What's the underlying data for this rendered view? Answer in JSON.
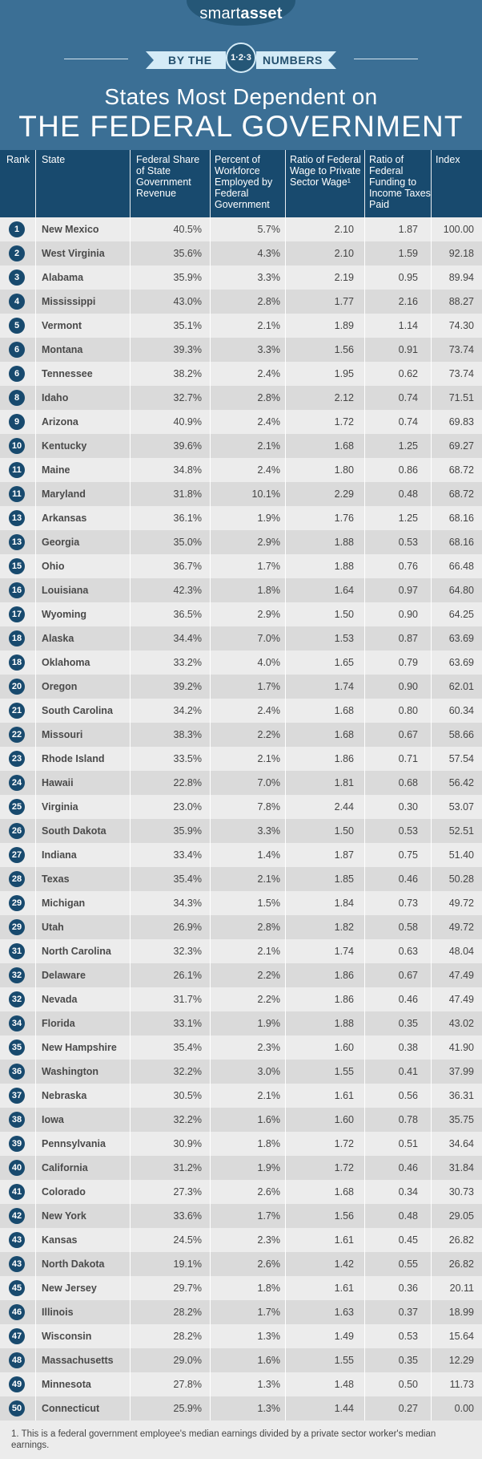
{
  "brand": {
    "light": "smart",
    "bold": "asset"
  },
  "banner": {
    "left": "BY THE",
    "badge": "1·2·3",
    "right": "NUMBERS"
  },
  "title": {
    "line1": "States Most Dependent on",
    "line2": "THE FEDERAL GOVERNMENT"
  },
  "colors": {
    "header_bg": "#3b6f95",
    "table_head": "#184a6e",
    "ribbon": "#d4ebf7",
    "row_light": "#ececec",
    "row_dark": "#dadada"
  },
  "chart_data": {
    "type": "table",
    "columns": [
      "Rank",
      "State",
      "Federal Share of State Government Revenue",
      "Percent of Workforce Employed by Federal Government",
      "Ratio of Federal Wage to Private Sector Wage¹",
      "Ratio of Federal Funding to Income Taxes Paid",
      "Index"
    ],
    "rows": [
      [
        "1",
        "New Mexico",
        "40.5%",
        "5.7%",
        "2.10",
        "1.87",
        "100.00"
      ],
      [
        "2",
        "West Virginia",
        "35.6%",
        "4.3%",
        "2.10",
        "1.59",
        "92.18"
      ],
      [
        "3",
        "Alabama",
        "35.9%",
        "3.3%",
        "2.19",
        "0.95",
        "89.94"
      ],
      [
        "4",
        "Mississippi",
        "43.0%",
        "2.8%",
        "1.77",
        "2.16",
        "88.27"
      ],
      [
        "5",
        "Vermont",
        "35.1%",
        "2.1%",
        "1.89",
        "1.14",
        "74.30"
      ],
      [
        "6",
        "Montana",
        "39.3%",
        "3.3%",
        "1.56",
        "0.91",
        "73.74"
      ],
      [
        "6",
        "Tennessee",
        "38.2%",
        "2.4%",
        "1.95",
        "0.62",
        "73.74"
      ],
      [
        "8",
        "Idaho",
        "32.7%",
        "2.8%",
        "2.12",
        "0.74",
        "71.51"
      ],
      [
        "9",
        "Arizona",
        "40.9%",
        "2.4%",
        "1.72",
        "0.74",
        "69.83"
      ],
      [
        "10",
        "Kentucky",
        "39.6%",
        "2.1%",
        "1.68",
        "1.25",
        "69.27"
      ],
      [
        "11",
        "Maine",
        "34.8%",
        "2.4%",
        "1.80",
        "0.86",
        "68.72"
      ],
      [
        "11",
        "Maryland",
        "31.8%",
        "10.1%",
        "2.29",
        "0.48",
        "68.72"
      ],
      [
        "13",
        "Arkansas",
        "36.1%",
        "1.9%",
        "1.76",
        "1.25",
        "68.16"
      ],
      [
        "13",
        "Georgia",
        "35.0%",
        "2.9%",
        "1.88",
        "0.53",
        "68.16"
      ],
      [
        "15",
        "Ohio",
        "36.7%",
        "1.7%",
        "1.88",
        "0.76",
        "66.48"
      ],
      [
        "16",
        "Louisiana",
        "42.3%",
        "1.8%",
        "1.64",
        "0.97",
        "64.80"
      ],
      [
        "17",
        "Wyoming",
        "36.5%",
        "2.9%",
        "1.50",
        "0.90",
        "64.25"
      ],
      [
        "18",
        "Alaska",
        "34.4%",
        "7.0%",
        "1.53",
        "0.87",
        "63.69"
      ],
      [
        "18",
        "Oklahoma",
        "33.2%",
        "4.0%",
        "1.65",
        "0.79",
        "63.69"
      ],
      [
        "20",
        "Oregon",
        "39.2%",
        "1.7%",
        "1.74",
        "0.90",
        "62.01"
      ],
      [
        "21",
        "South Carolina",
        "34.2%",
        "2.4%",
        "1.68",
        "0.80",
        "60.34"
      ],
      [
        "22",
        "Missouri",
        "38.3%",
        "2.2%",
        "1.68",
        "0.67",
        "58.66"
      ],
      [
        "23",
        "Rhode Island",
        "33.5%",
        "2.1%",
        "1.86",
        "0.71",
        "57.54"
      ],
      [
        "24",
        "Hawaii",
        "22.8%",
        "7.0%",
        "1.81",
        "0.68",
        "56.42"
      ],
      [
        "25",
        "Virginia",
        "23.0%",
        "7.8%",
        "2.44",
        "0.30",
        "53.07"
      ],
      [
        "26",
        "South Dakota",
        "35.9%",
        "3.3%",
        "1.50",
        "0.53",
        "52.51"
      ],
      [
        "27",
        "Indiana",
        "33.4%",
        "1.4%",
        "1.87",
        "0.75",
        "51.40"
      ],
      [
        "28",
        "Texas",
        "35.4%",
        "2.1%",
        "1.85",
        "0.46",
        "50.28"
      ],
      [
        "29",
        "Michigan",
        "34.3%",
        "1.5%",
        "1.84",
        "0.73",
        "49.72"
      ],
      [
        "29",
        "Utah",
        "26.9%",
        "2.8%",
        "1.82",
        "0.58",
        "49.72"
      ],
      [
        "31",
        "North Carolina",
        "32.3%",
        "2.1%",
        "1.74",
        "0.63",
        "48.04"
      ],
      [
        "32",
        "Delaware",
        "26.1%",
        "2.2%",
        "1.86",
        "0.67",
        "47.49"
      ],
      [
        "32",
        "Nevada",
        "31.7%",
        "2.2%",
        "1.86",
        "0.46",
        "47.49"
      ],
      [
        "34",
        "Florida",
        "33.1%",
        "1.9%",
        "1.88",
        "0.35",
        "43.02"
      ],
      [
        "35",
        "New Hampshire",
        "35.4%",
        "2.3%",
        "1.60",
        "0.38",
        "41.90"
      ],
      [
        "36",
        "Washington",
        "32.2%",
        "3.0%",
        "1.55",
        "0.41",
        "37.99"
      ],
      [
        "37",
        "Nebraska",
        "30.5%",
        "2.1%",
        "1.61",
        "0.56",
        "36.31"
      ],
      [
        "38",
        "Iowa",
        "32.2%",
        "1.6%",
        "1.60",
        "0.78",
        "35.75"
      ],
      [
        "39",
        "Pennsylvania",
        "30.9%",
        "1.8%",
        "1.72",
        "0.51",
        "34.64"
      ],
      [
        "40",
        "California",
        "31.2%",
        "1.9%",
        "1.72",
        "0.46",
        "31.84"
      ],
      [
        "41",
        "Colorado",
        "27.3%",
        "2.6%",
        "1.68",
        "0.34",
        "30.73"
      ],
      [
        "42",
        "New York",
        "33.6%",
        "1.7%",
        "1.56",
        "0.48",
        "29.05"
      ],
      [
        "43",
        "Kansas",
        "24.5%",
        "2.3%",
        "1.61",
        "0.45",
        "26.82"
      ],
      [
        "43",
        "North Dakota",
        "19.1%",
        "2.6%",
        "1.42",
        "0.55",
        "26.82"
      ],
      [
        "45",
        "New Jersey",
        "29.7%",
        "1.8%",
        "1.61",
        "0.36",
        "20.11"
      ],
      [
        "46",
        "Illinois",
        "28.2%",
        "1.7%",
        "1.63",
        "0.37",
        "18.99"
      ],
      [
        "47",
        "Wisconsin",
        "28.2%",
        "1.3%",
        "1.49",
        "0.53",
        "15.64"
      ],
      [
        "48",
        "Massachusetts",
        "29.0%",
        "1.6%",
        "1.55",
        "0.35",
        "12.29"
      ],
      [
        "49",
        "Minnesota",
        "27.8%",
        "1.3%",
        "1.48",
        "0.50",
        "11.73"
      ],
      [
        "50",
        "Connecticut",
        "25.9%",
        "1.3%",
        "1.44",
        "0.27",
        "0.00"
      ]
    ]
  },
  "footnote": "1. This is a federal government employee's median earnings divided by a private sector worker's median earnings."
}
